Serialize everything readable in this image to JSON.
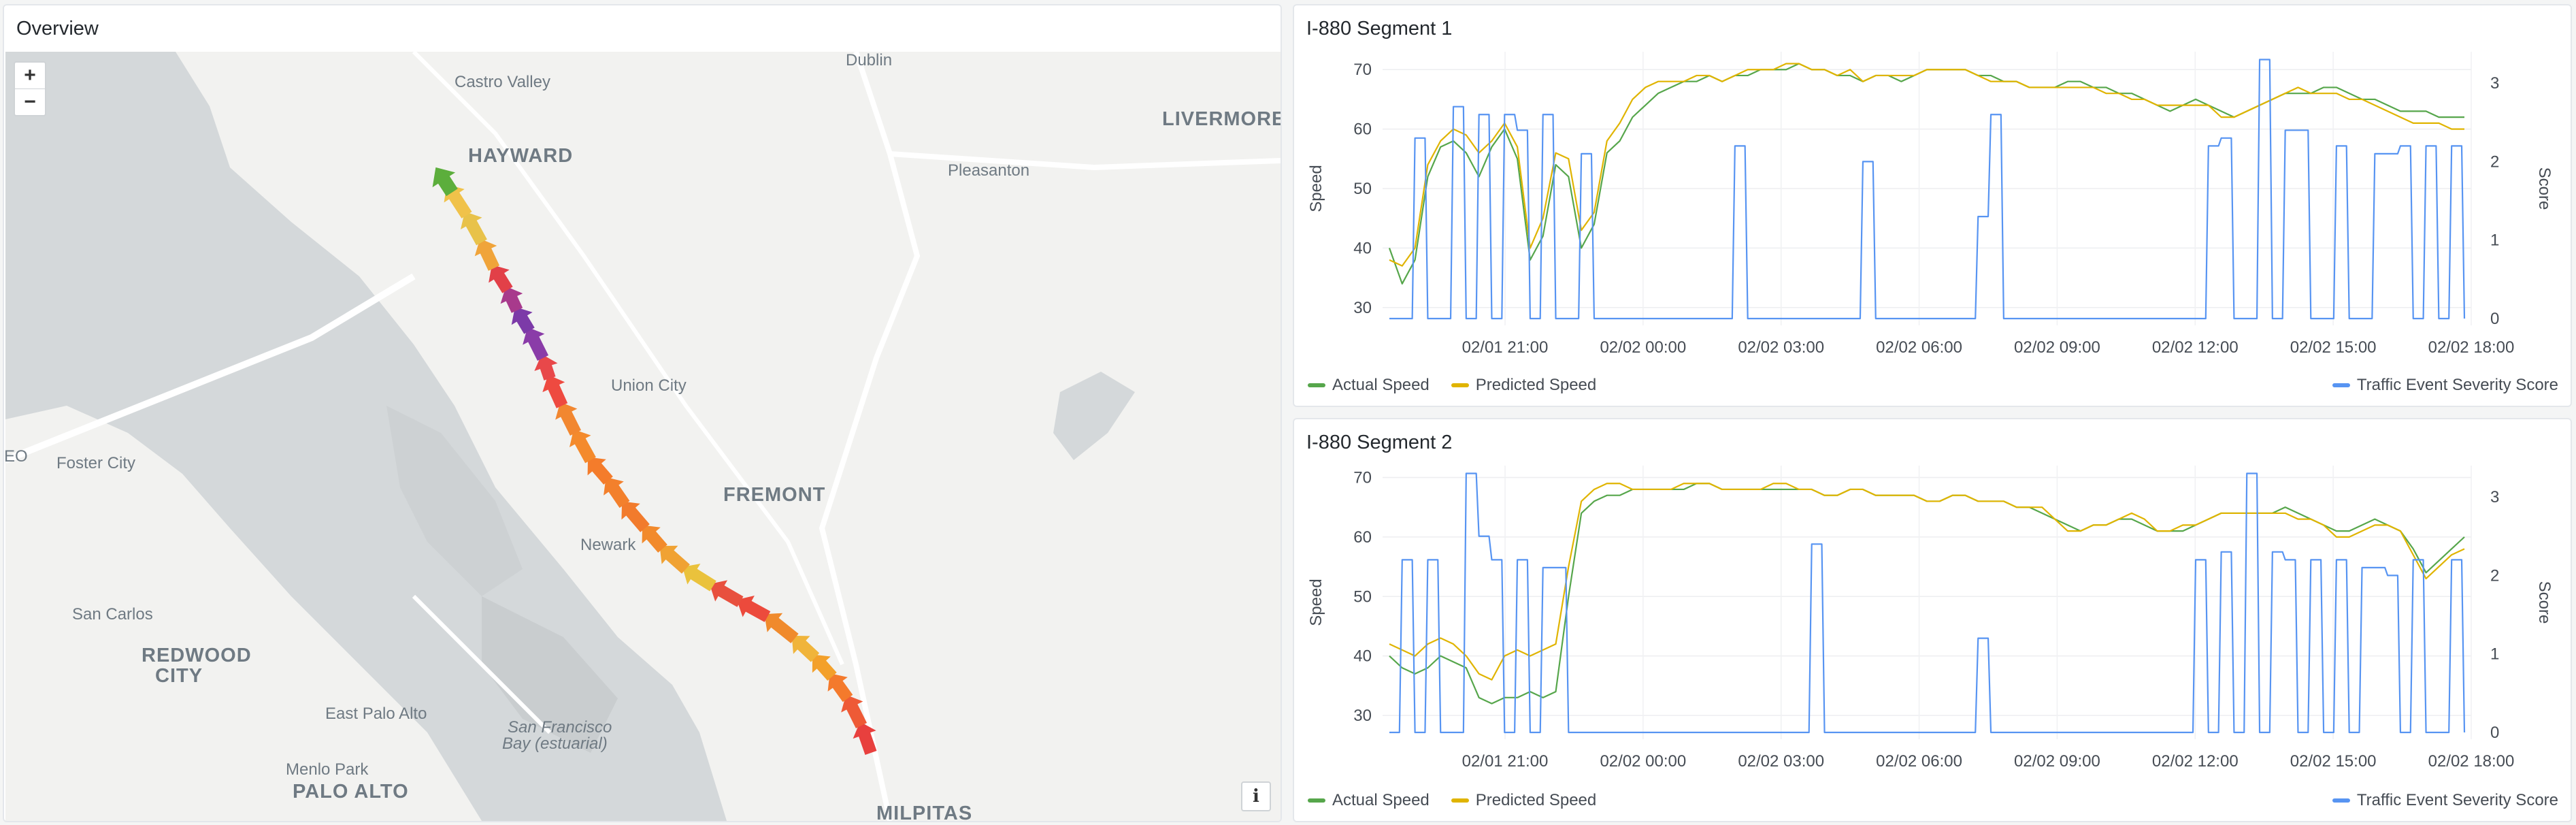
{
  "overview": {
    "title": "Overview",
    "zoom_in": "+",
    "zoom_out": "−",
    "info": "i",
    "places": [
      {
        "name": "Castro Valley",
        "kind": "town"
      },
      {
        "name": "Dublin",
        "kind": "town"
      },
      {
        "name": "HAYWARD",
        "kind": "city"
      },
      {
        "name": "Pleasanton",
        "kind": "town"
      },
      {
        "name": "LIVERMORE",
        "kind": "city"
      },
      {
        "name": "Union City",
        "kind": "town"
      },
      {
        "name": "FREMONT",
        "kind": "city"
      },
      {
        "name": "Foster City",
        "kind": "town"
      },
      {
        "name": "EO",
        "kind": "town"
      },
      {
        "name": "Newark",
        "kind": "town"
      },
      {
        "name": "San Carlos",
        "kind": "town"
      },
      {
        "name": "REDWOOD",
        "kind": "city"
      },
      {
        "name": "CITY",
        "kind": "city"
      },
      {
        "name": "East Palo Alto",
        "kind": "town"
      },
      {
        "name": "San Francisco",
        "kind": "water"
      },
      {
        "name": "Bay (estuarial)",
        "kind": "water"
      },
      {
        "name": "Menlo Park",
        "kind": "town"
      },
      {
        "name": "PALO ALTO",
        "kind": "city"
      },
      {
        "name": "MILPITAS",
        "kind": "city"
      }
    ],
    "arrow_colors": [
      "#e8403e",
      "#ee5a36",
      "#f47a2c",
      "#f3a02a",
      "#f0b43a",
      "#f08a2c",
      "#ec4a3c",
      "#e8503e",
      "#eac23c",
      "#f0a233",
      "#f28a2c",
      "#f27b2c",
      "#f3802c",
      "#f47c2b",
      "#f48a2c",
      "#f28730",
      "#ee4a40",
      "#e8484a",
      "#8a3ca8",
      "#7c3aa8",
      "#a83a8c",
      "#e24048",
      "#f0a43a",
      "#e8c24a",
      "#f0c24a",
      "#5cae3c"
    ],
    "colors": {
      "water": "#d4d8da",
      "land": "#f2f2f0",
      "road": "#ffffff"
    }
  },
  "segments": [
    {
      "title": "I-880 Segment 1",
      "legend": {
        "actual": "Actual Speed",
        "predicted": "Predicted Speed",
        "score": "Traffic Event Severity Score"
      },
      "chart_data": {
        "type": "line",
        "x_ticks": [
          "02/01 21:00",
          "02/02 00:00",
          "02/02 03:00",
          "02/02 06:00",
          "02/02 09:00",
          "02/02 12:00",
          "02/02 15:00",
          "02/02 18:00"
        ],
        "ylabel_left": "Speed",
        "ylabel_right": "Score",
        "y_left_ticks": [
          30,
          40,
          50,
          60,
          70
        ],
        "y_right_ticks": [
          0,
          1,
          2,
          3
        ],
        "ylim_left": [
          27,
          73
        ],
        "ylim_right": [
          0,
          3.4
        ],
        "series": [
          {
            "name": "Actual Speed",
            "color": "#56a64b",
            "values": [
              40,
              34,
              38,
              52,
              57,
              58,
              56,
              52,
              57,
              60,
              55,
              38,
              42,
              54,
              52,
              40,
              44,
              56,
              58,
              62,
              64,
              66,
              67,
              68,
              68,
              69,
              68,
              69,
              69,
              70,
              70,
              70,
              71,
              70,
              70,
              69,
              69,
              68,
              69,
              69,
              68,
              69,
              70,
              70,
              70,
              70,
              69,
              69,
              68,
              68,
              67,
              67,
              67,
              68,
              68,
              67,
              67,
              66,
              66,
              65,
              64,
              63,
              64,
              65,
              64,
              63,
              62,
              63,
              64,
              65,
              66,
              66,
              66,
              67,
              67,
              66,
              65,
              65,
              64,
              63,
              63,
              63,
              62,
              62,
              62
            ]
          },
          {
            "name": "Predicted Speed",
            "color": "#e0b400",
            "values": [
              38,
              37,
              40,
              54,
              58,
              60,
              59,
              56,
              58,
              61,
              57,
              40,
              45,
              56,
              55,
              43,
              46,
              58,
              61,
              65,
              67,
              68,
              68,
              68,
              69,
              69,
              68,
              69,
              70,
              70,
              70,
              71,
              71,
              70,
              70,
              69,
              70,
              68,
              69,
              69,
              69,
              69,
              70,
              70,
              70,
              70,
              69,
              68,
              68,
              68,
              67,
              67,
              67,
              67,
              67,
              67,
              66,
              66,
              65,
              65,
              64,
              64,
              64,
              64,
              64,
              62,
              62,
              63,
              64,
              65,
              66,
              67,
              66,
              66,
              66,
              65,
              65,
              64,
              63,
              62,
              61,
              61,
              61,
              60,
              60
            ]
          },
          {
            "name": "Traffic Event Severity Score",
            "color": "#5794f2",
            "values": [
              0,
              0,
              2.3,
              0,
              0,
              2.7,
              0,
              2.6,
              0,
              2.6,
              2.4,
              0,
              2.6,
              0,
              0,
              2.1,
              0,
              0,
              0,
              0,
              0,
              0,
              0,
              0,
              0,
              0,
              0,
              2.2,
              0,
              0,
              0,
              0,
              0,
              0,
              0,
              0,
              0,
              2.0,
              0,
              0,
              0,
              0,
              0,
              0,
              0,
              0,
              1.3,
              2.6,
              0,
              0,
              0,
              0,
              0,
              0,
              0,
              0,
              0,
              0,
              0,
              0,
              0,
              0,
              0,
              0,
              2.2,
              2.3,
              0,
              0,
              3.3,
              0,
              2.4,
              2.4,
              0,
              0,
              2.2,
              0,
              0,
              2.1,
              2.1,
              2.2,
              0,
              2.2,
              0,
              2.2,
              0
            ]
          }
        ]
      }
    },
    {
      "title": "I-880 Segment 2",
      "legend": {
        "actual": "Actual Speed",
        "predicted": "Predicted Speed",
        "score": "Traffic Event Severity Score"
      },
      "chart_data": {
        "type": "line",
        "x_ticks": [
          "02/01 21:00",
          "02/02 00:00",
          "02/02 03:00",
          "02/02 06:00",
          "02/02 09:00",
          "02/02 12:00",
          "02/02 15:00",
          "02/02 18:00"
        ],
        "ylabel_left": "Speed",
        "ylabel_right": "Score",
        "y_left_ticks": [
          30,
          40,
          50,
          60,
          70
        ],
        "y_right_ticks": [
          0,
          1,
          2,
          3
        ],
        "ylim_left": [
          26,
          72
        ],
        "ylim_right": [
          0,
          3.4
        ],
        "series": [
          {
            "name": "Actual Speed",
            "color": "#56a64b",
            "values": [
              40,
              38,
              37,
              38,
              40,
              39,
              38,
              33,
              32,
              33,
              33,
              34,
              33,
              34,
              50,
              64,
              66,
              67,
              67,
              68,
              68,
              68,
              68,
              68,
              69,
              69,
              68,
              68,
              68,
              68,
              68,
              68,
              68,
              68,
              67,
              67,
              68,
              68,
              67,
              67,
              67,
              67,
              66,
              66,
              67,
              67,
              66,
              66,
              66,
              65,
              65,
              64,
              63,
              62,
              61,
              62,
              62,
              63,
              63,
              62,
              61,
              61,
              61,
              62,
              63,
              64,
              64,
              64,
              64,
              64,
              65,
              64,
              63,
              62,
              61,
              61,
              62,
              63,
              62,
              61,
              58,
              54,
              56,
              58,
              60
            ]
          },
          {
            "name": "Predicted Speed",
            "color": "#e0b400",
            "values": [
              42,
              41,
              40,
              42,
              43,
              42,
              40,
              37,
              36,
              40,
              41,
              40,
              41,
              42,
              55,
              66,
              68,
              69,
              69,
              68,
              68,
              68,
              68,
              69,
              69,
              69,
              68,
              68,
              68,
              68,
              69,
              69,
              68,
              68,
              67,
              67,
              68,
              68,
              67,
              67,
              67,
              67,
              66,
              66,
              67,
              67,
              66,
              66,
              66,
              65,
              65,
              65,
              63,
              61,
              61,
              62,
              62,
              63,
              64,
              63,
              61,
              61,
              62,
              62,
              63,
              64,
              64,
              64,
              64,
              64,
              64,
              63,
              63,
              62,
              60,
              60,
              61,
              62,
              62,
              61,
              57,
              53,
              55,
              57,
              58
            ]
          },
          {
            "name": "Traffic Event Severity Score",
            "color": "#5794f2",
            "values": [
              0,
              2.2,
              0,
              2.2,
              0,
              0,
              3.3,
              2.5,
              2.2,
              0,
              2.2,
              0,
              2.1,
              2.1,
              0,
              0,
              0,
              0,
              0,
              0,
              0,
              0,
              0,
              0,
              0,
              0,
              0,
              0,
              0,
              0,
              0,
              0,
              0,
              2.4,
              0,
              0,
              0,
              0,
              0,
              0,
              0,
              0,
              0,
              0,
              0,
              0,
              1.2,
              0,
              0,
              0,
              0,
              0,
              0,
              0,
              0,
              0,
              0,
              0,
              0,
              0,
              0,
              0,
              0,
              2.2,
              0,
              2.3,
              0,
              3.3,
              0,
              2.3,
              2.2,
              0,
              2.2,
              0,
              2.2,
              0,
              2.1,
              2.1,
              2.0,
              0,
              2.2,
              0,
              0,
              2.2,
              0
            ]
          }
        ]
      }
    }
  ]
}
